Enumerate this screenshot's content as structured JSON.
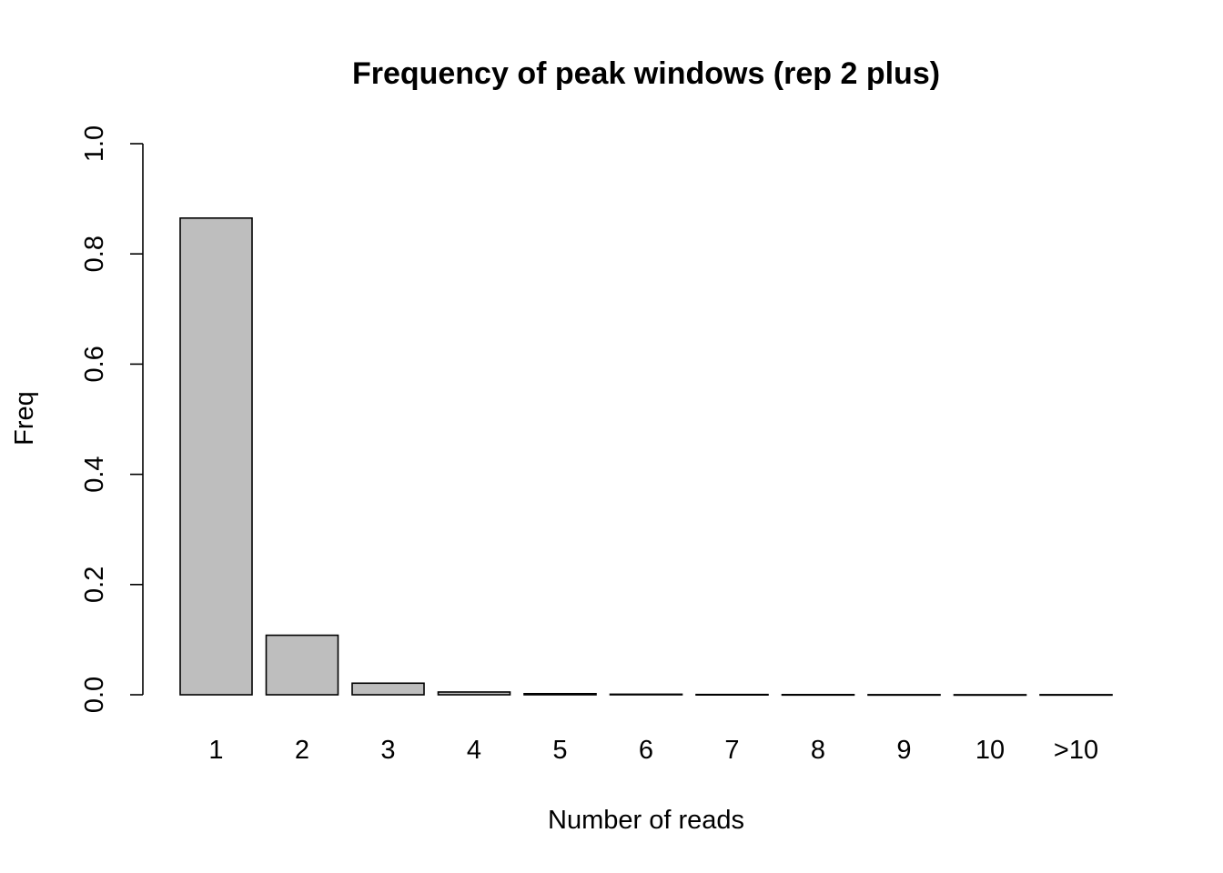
{
  "chart_data": {
    "type": "bar",
    "title": "Frequency of peak windows (rep 2 plus)",
    "xlabel": "Number of reads",
    "ylabel": "Freq",
    "categories": [
      "1",
      "2",
      "3",
      "4",
      "5",
      "6",
      "7",
      "8",
      "9",
      "10",
      ">10"
    ],
    "values": [
      0.865,
      0.108,
      0.021,
      0.005,
      0.002,
      0.001,
      0.0005,
      0.0003,
      0.0002,
      0.0001,
      0.0002
    ],
    "ylim": [
      0,
      1
    ],
    "yticks": [
      "0.0",
      "0.2",
      "0.4",
      "0.6",
      "0.8",
      "1.0"
    ],
    "ytick_values": [
      0,
      0.2,
      0.4,
      0.6,
      0.8,
      1.0
    ],
    "bar_color": "#bebebe",
    "grid": false,
    "legend": "none"
  }
}
